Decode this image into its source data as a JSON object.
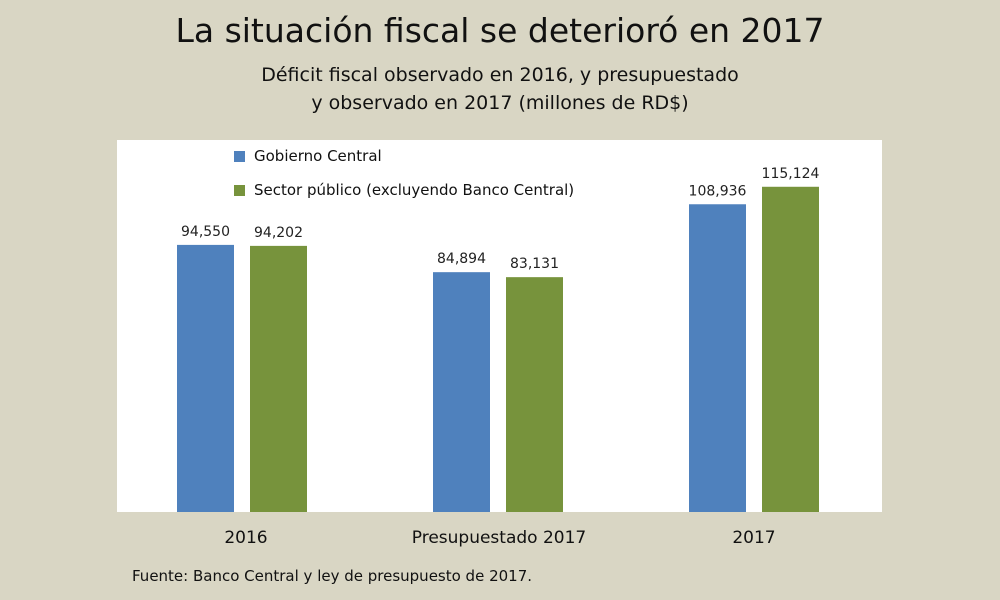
{
  "title": "La situación fiscal se deterioró en 2017",
  "subtitle_line1": "Déficit fiscal observado en 2016, y presupuestado",
  "subtitle_line2": "y observado en 2017 (millones de RD$)",
  "source": "Fuente: Banco Central y ley de presupuesto de 2017.",
  "colors": {
    "gobierno": "#4f81bd",
    "sector": "#77933c",
    "plot_bg": "#ffffff",
    "page_bg": "#d9d6c4"
  },
  "chart_data": {
    "type": "bar",
    "categories": [
      "2016",
      "Presupuestado 2017",
      "2017"
    ],
    "series": [
      {
        "name": "Gobierno Central",
        "values": [
          94550,
          84894,
          108936
        ]
      },
      {
        "name": "Sector público (excluyendo Banco Central)",
        "values": [
          94202,
          83131,
          115124
        ]
      }
    ],
    "value_labels": [
      [
        "94,550",
        "84,894",
        "108,936"
      ],
      [
        "94,202",
        "83,131",
        "115,124"
      ]
    ],
    "ylim": [
      0,
      125000
    ],
    "grid": false,
    "legend_position": "top-left"
  }
}
